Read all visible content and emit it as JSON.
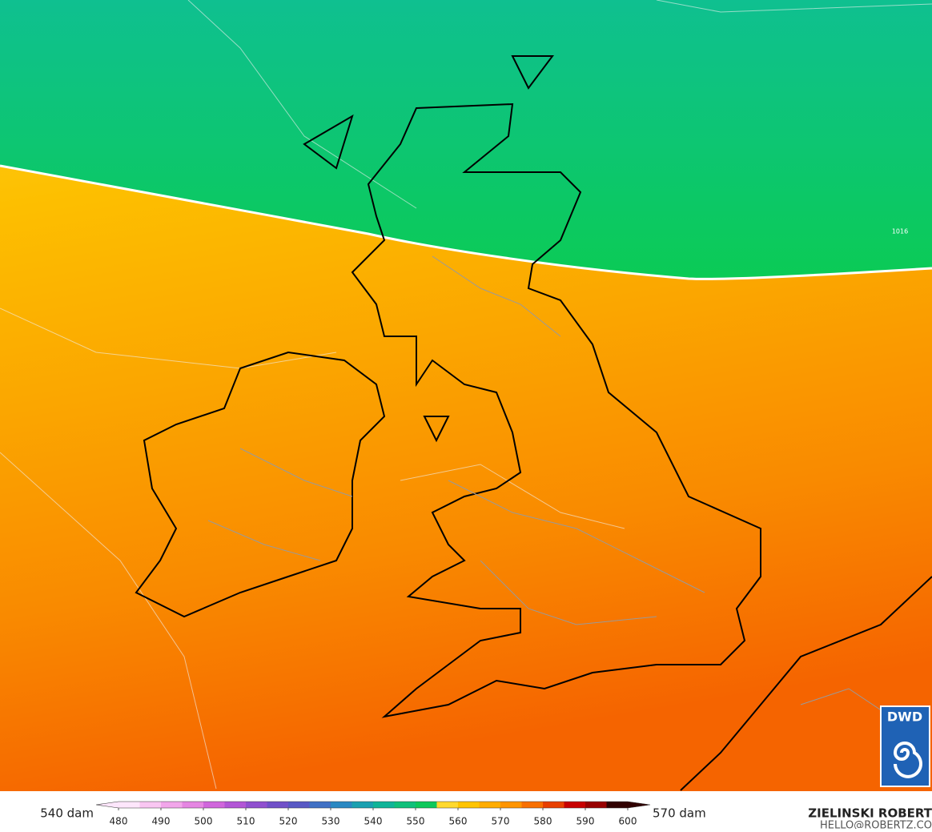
{
  "legend_left": "540 dam",
  "legend_right": "570 dam",
  "colorbar": {
    "ticks": [
      480,
      490,
      500,
      510,
      520,
      530,
      540,
      550,
      560,
      570,
      580,
      590,
      600
    ],
    "colors": [
      "#fde6fb",
      "#f9c6f2",
      "#f2a6ea",
      "#e586e2",
      "#d066dc",
      "#b256d6",
      "#9050cf",
      "#7050c8",
      "#5858c4",
      "#4070c4",
      "#2a88c2",
      "#1aa0b0",
      "#10b498",
      "#10c07a",
      "#0dc85a",
      "#ffd92e",
      "#ffc400",
      "#ffac00",
      "#ff9400",
      "#f86f00",
      "#e84000",
      "#c80000",
      "#980000",
      "#300000"
    ]
  },
  "credit": {
    "author": "ZIELINSKI ROBERT",
    "email": "HELLO@ROBERTZ.CO"
  },
  "logo": "DWD",
  "contour_label": "1016"
}
